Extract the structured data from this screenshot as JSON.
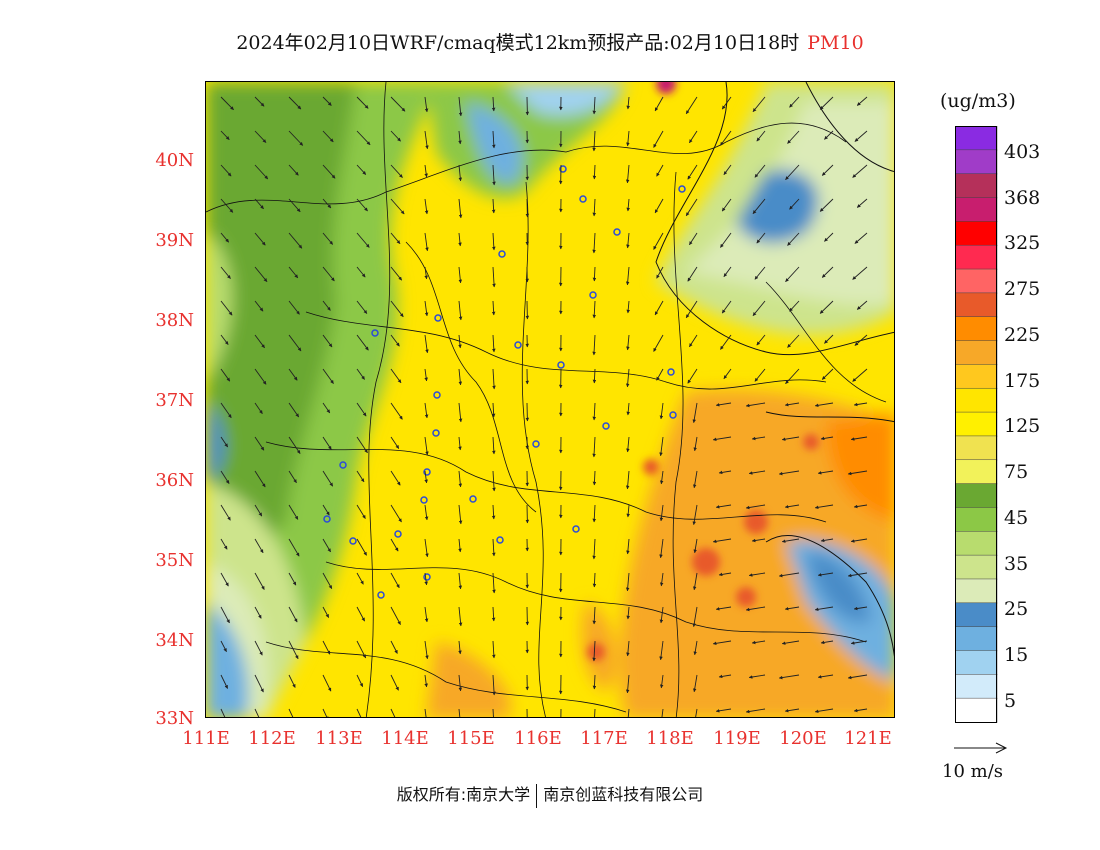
{
  "title": {
    "main": "2024年02月10日WRF/cmaq模式12km预报产品:02月10日18时",
    "pollutant": "PM10"
  },
  "colors": {
    "title_accent": "#e8312e",
    "axis_label": "#e8312e"
  },
  "map": {
    "lat_labels": [
      "40N",
      "39N",
      "38N",
      "37N",
      "36N",
      "35N",
      "34N",
      "33N"
    ],
    "lon_labels": [
      "111E",
      "112E",
      "113E",
      "114E",
      "115E",
      "116E",
      "117E",
      "118E",
      "119E",
      "120E",
      "121E"
    ],
    "lat_range": [
      33,
      40.95
    ],
    "lon_range": [
      111,
      121.4
    ],
    "cities_marker_color": "#2a4bd8"
  },
  "legend": {
    "unit": "(ug/m3)",
    "labels": [
      "403",
      "368",
      "325",
      "275",
      "225",
      "175",
      "125",
      "75",
      "45",
      "35",
      "25",
      "15",
      "5"
    ],
    "swatches": [
      "#8a2be2",
      "#a03cc8",
      "#b5305a",
      "#c81e6e",
      "#ff0000",
      "#ff2a50",
      "#ff6464",
      "#e85a2a",
      "#ff8c00",
      "#f7a828",
      "#ffc81e",
      "#ffe500",
      "#fff000",
      "#f0e250",
      "#f2f25a",
      "#6aa832",
      "#8cc846",
      "#b8dc6e",
      "#cde48c",
      "#dcebb8",
      "#4a8cc8",
      "#6eb0e0",
      "#a0d2f0",
      "#d2ebfa",
      "#ffffff"
    ]
  },
  "wind_reference": {
    "label": "10 m/s"
  },
  "footer": {
    "copyright": "版权所有:南京大学",
    "company": "南京创蓝科技有限公司"
  }
}
